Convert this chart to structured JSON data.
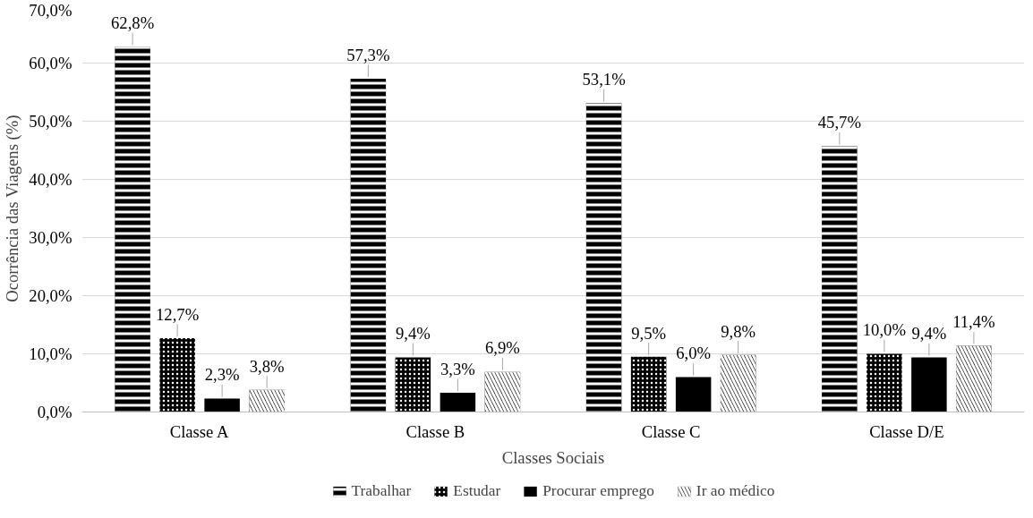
{
  "chart_data": {
    "type": "bar",
    "xlabel": "Classes Sociais",
    "ylabel": "Ocorrência das Viagens (%)",
    "categories": [
      "Classe A",
      "Classe B",
      "Classe C",
      "Classe D/E"
    ],
    "series": [
      {
        "name": "Trabalhar",
        "color": "#000000",
        "values": [
          62.8,
          57.3,
          53.1,
          45.7
        ],
        "value_labels": [
          "62,8%",
          "57,3%",
          "53,1%",
          "45,7%"
        ]
      },
      {
        "name": "Estudar",
        "color": "#000000",
        "values": [
          12.7,
          9.4,
          9.5,
          10.0
        ],
        "value_labels": [
          "12,7%",
          "9,4%",
          "9,5%",
          "10,0%"
        ]
      },
      {
        "name": "Procurar emprego",
        "color": "#000000",
        "values": [
          2.3,
          3.3,
          6.0,
          9.4
        ],
        "value_labels": [
          "2,3%",
          "3,3%",
          "6,0%",
          "9,4%"
        ]
      },
      {
        "name": "Ir ao médico",
        "color": "#000000",
        "values": [
          3.8,
          6.9,
          9.8,
          11.4
        ],
        "value_labels": [
          "3,8%",
          "6,9%",
          "9,8%",
          "11,4%"
        ]
      }
    ],
    "ylim": [
      0,
      70
    ],
    "yticks": [
      {
        "value": 0,
        "label": "0,0%"
      },
      {
        "value": 10,
        "label": "10,0%"
      },
      {
        "value": 20,
        "label": "20,0%"
      },
      {
        "value": 30,
        "label": "30,0%"
      },
      {
        "value": 40,
        "label": "40,0%"
      },
      {
        "value": 50,
        "label": "50,0%"
      },
      {
        "value": 60,
        "label": "60,0%"
      },
      {
        "value": 70,
        "label": "70,0%"
      }
    ],
    "grid": "y",
    "legend": "bottom"
  }
}
